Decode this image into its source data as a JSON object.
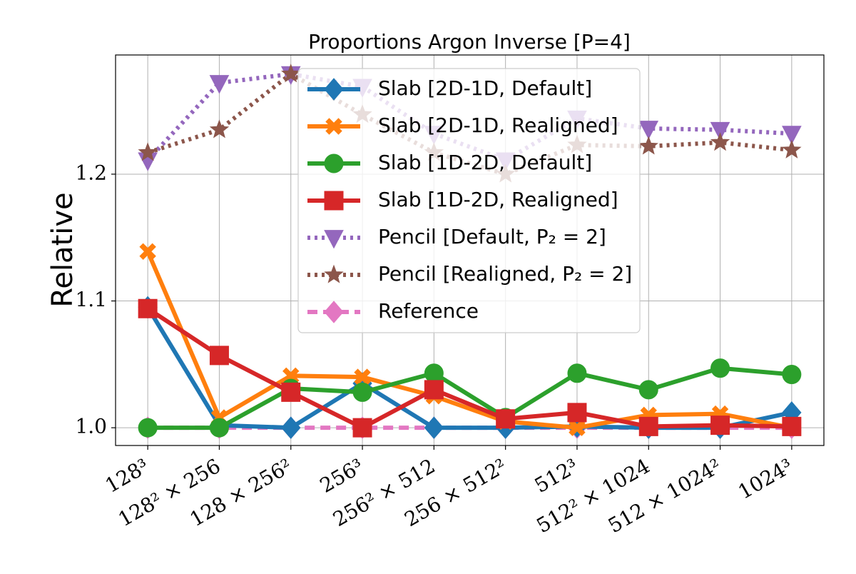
{
  "chart_data": {
    "type": "line",
    "title": "Proportions Argon Inverse [P=4]",
    "ylabel": "Relative",
    "categories": [
      "128³",
      "128² × 256",
      "128 × 256²",
      "256³",
      "256² × 512",
      "256 × 512²",
      "512³",
      "512² × 1024",
      "512 × 1024²",
      "1024³"
    ],
    "ylim": [
      0.986,
      1.294
    ],
    "yticks": [
      {
        "value": 1,
        "label": "1.0"
      },
      1.1,
      1.2
    ],
    "grid": true,
    "legend": "upper center",
    "series": [
      {
        "name": "Reference",
        "color": "#e377c2",
        "marker": "diamond",
        "linestyle": "dashed",
        "values": [
          1,
          1,
          1,
          1,
          1,
          1,
          1,
          1,
          1,
          1
        ]
      },
      {
        "name": "Slab [2D-1D, Default]",
        "color": "#1f77b4",
        "marker": "diamond",
        "linestyle": "solid",
        "values": [
          1.095,
          1.002,
          1.0,
          1.035,
          1.0,
          1.0,
          1.001,
          1.0,
          1.0,
          1.012
        ]
      },
      {
        "name": "Slab [2D-1D, Realigned]",
        "color": "#ff7f0e",
        "marker": "x",
        "linestyle": "solid",
        "values": [
          1.139,
          1.008,
          1.041,
          1.04,
          1.025,
          1.005,
          1.0,
          1.01,
          1.011,
          1.0
        ]
      },
      {
        "name": "Slab [1D-2D, Default]",
        "color": "#2ca02c",
        "marker": "circle",
        "linestyle": "solid",
        "values": [
          1.0,
          1.0,
          1.031,
          1.028,
          1.043,
          1.008,
          1.043,
          1.03,
          1.047,
          1.042
        ]
      },
      {
        "name": "Slab [1D-2D, Realigned]",
        "color": "#d62728",
        "marker": "square",
        "linestyle": "solid",
        "values": [
          1.094,
          1.057,
          1.028,
          1.0,
          1.03,
          1.007,
          1.012,
          1.001,
          1.002,
          1.001
        ]
      },
      {
        "name": "Pencil [Default, P₂ = 2]",
        "color": "#9467bd",
        "marker": "triangle-down",
        "linestyle": "dotted",
        "values": [
          1.211,
          1.272,
          1.279,
          1.269,
          1.232,
          1.211,
          1.244,
          1.236,
          1.235,
          1.232
        ]
      },
      {
        "name": "Pencil [Realigned, P₂ = 2]",
        "color": "#8c564b",
        "marker": "star",
        "linestyle": "dotted",
        "values": [
          1.217,
          1.235,
          1.279,
          1.247,
          1.217,
          1.2,
          1.223,
          1.222,
          1.225,
          1.219
        ]
      }
    ],
    "legend_order": [
      1,
      2,
      3,
      4,
      5,
      6,
      0
    ]
  }
}
